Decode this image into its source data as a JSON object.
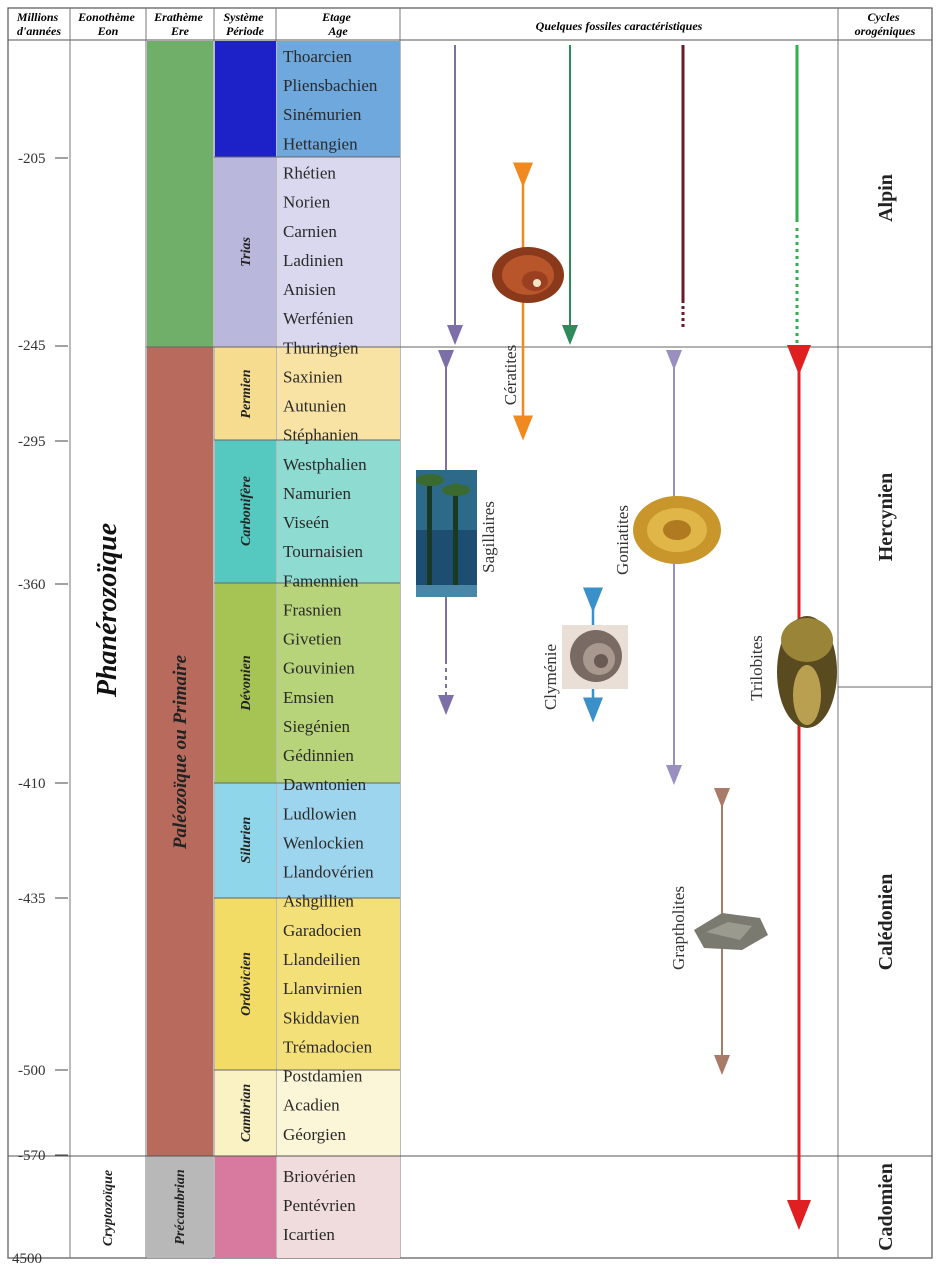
{
  "headers": {
    "millions": "Millions d'années",
    "eonotheme": "Eonothème Eon",
    "eratheme": "Erathème Ere",
    "systeme": "Système Période",
    "etage": "Etage Age",
    "fossiles": "Quelques fossiles caractéristiques",
    "cycles": "Cycles orogéniques"
  },
  "time_ticks": [
    "-205",
    "-245",
    "-295",
    "-360",
    "-410",
    "-435",
    "-500",
    "-570",
    "4500"
  ],
  "eons": {
    "phanerozoique": "Phanérozoïque",
    "cryptozoique": "Cryptozoïque"
  },
  "eras": {
    "paleozoique": "Paléozoïque ou Primaire",
    "precambrian": "Précambrian"
  },
  "periods": {
    "trias": "Trias",
    "permien": "Permien",
    "carbonifere": "Carbonifère",
    "devonien": "Dévonien",
    "silurien": "Silurien",
    "ordovicien": "Ordovicien",
    "cambrian": "Cambrian"
  },
  "stages": [
    "Thoarcien",
    "Pliensbachien",
    "Sinémurien",
    "Hettangien",
    "Rhétien",
    "Norien",
    "Carnien",
    "Ladinien",
    "Anisien",
    "Werfénien",
    "Thuringien",
    "Saxinien",
    "Autunien",
    "Stéphanien",
    "Westphalien",
    "Namurien",
    "Viseén",
    "Tournaisien",
    "Famennien",
    "Frasnien",
    "Givetien",
    "Gouvinien",
    "Emsien",
    "Siegénien",
    "Gédinnien",
    "Dawntonien",
    "Ludlowien",
    "Wenlockien",
    "Llandovérien",
    "Ashgillien",
    "Garadocien",
    "Llandeilien",
    "Llanvirnien",
    "Skiddavien",
    "Trémadocien",
    "Postdamien",
    "Acadien",
    "Géorgien",
    "Briovérien",
    "Pentévrien",
    "Icartien"
  ],
  "fossils": {
    "ceratites": "Cératites",
    "sagillaires": "Sagillaires",
    "goniatites": "Goniatites",
    "clymenie": "Clyménie",
    "trilobites": "Trilobites",
    "graptholites": "Graptholites"
  },
  "cycles": {
    "alpin": "Alpin",
    "hercynien": "Hercynien",
    "caledonien": "Calédonien",
    "cadomien": "Cadomien"
  },
  "colors": {
    "jurassic": "#3a8fd0",
    "trias": "#b9b8dc",
    "permien": "#f6dc8e",
    "carbonifere": "#55c8c0",
    "devonien": "#a5c454",
    "silurien": "#8fd6ea",
    "ordovicien": "#f2dc66",
    "cambrian": "#fbf2c4",
    "precambrian_stage": "#f0dcdc",
    "mesozoic_era": "#6faf6a",
    "paleozoic_era": "#b86b5c",
    "precambrian_era": "#b8b8b8",
    "precambrian_period": "#d87aa0",
    "period_blue": "#1d22c8"
  }
}
